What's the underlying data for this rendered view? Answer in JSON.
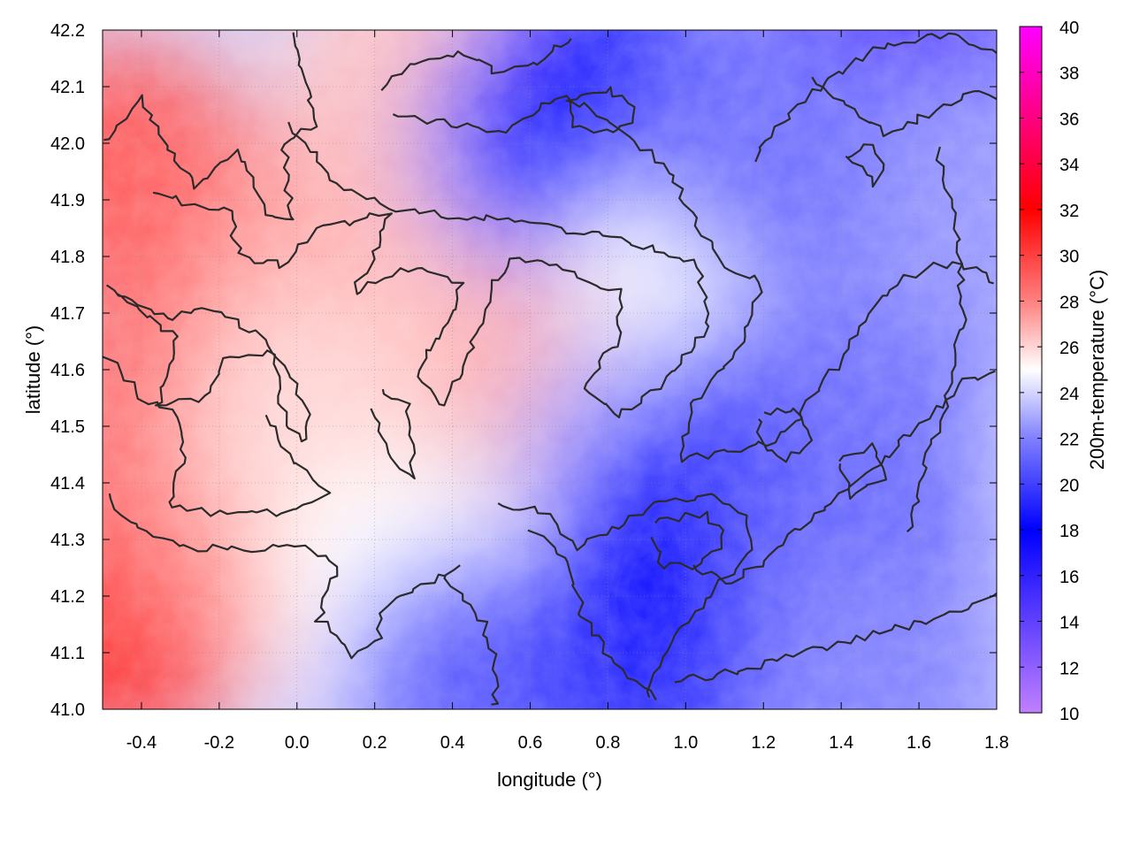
{
  "chart_data": {
    "type": "heatmap",
    "title": "",
    "xlabel": "longitude (°)",
    "ylabel": "latitude (°)",
    "colorbar_label": "200m-temperature (°C)",
    "xlim": [
      -0.5,
      1.8
    ],
    "ylim": [
      41.0,
      42.2
    ],
    "clim": [
      10,
      40
    ],
    "x_ticks": [
      -0.4,
      -0.2,
      0.0,
      0.2,
      0.4,
      0.6,
      0.8,
      1.0,
      1.2,
      1.4,
      1.6,
      1.8
    ],
    "x_tick_labels": [
      "-0.4",
      "-0.2",
      "0.0",
      "0.2",
      "0.4",
      "0.6",
      "0.8",
      "1.0",
      "1.2",
      "1.4",
      "1.6",
      "1.8"
    ],
    "y_ticks": [
      41.0,
      41.1,
      41.2,
      41.3,
      41.4,
      41.5,
      41.6,
      41.7,
      41.8,
      41.9,
      42.0,
      42.1,
      42.2
    ],
    "y_tick_labels": [
      "41.0",
      "41.1",
      "41.2",
      "41.3",
      "41.4",
      "41.5",
      "41.6",
      "41.7",
      "41.8",
      "41.9",
      "42.0",
      "42.1",
      "42.2"
    ],
    "colorbar_ticks": [
      10,
      12,
      14,
      16,
      18,
      20,
      22,
      24,
      26,
      28,
      30,
      32,
      34,
      36,
      38,
      40
    ],
    "colorbar_tick_labels": [
      "10",
      "12",
      "14",
      "16",
      "18",
      "20",
      "22",
      "24",
      "26",
      "28",
      "30",
      "32",
      "34",
      "36",
      "38",
      "40"
    ],
    "colormap": [
      {
        "value": 10,
        "color": "#c080ff"
      },
      {
        "value": 14,
        "color": "#6040ff"
      },
      {
        "value": 18,
        "color": "#0000ff"
      },
      {
        "value": 22,
        "color": "#8080ff"
      },
      {
        "value": 25,
        "color": "#ffffff"
      },
      {
        "value": 28,
        "color": "#ff8080"
      },
      {
        "value": 32,
        "color": "#ff0000"
      },
      {
        "value": 36,
        "color": "#ff0080"
      },
      {
        "value": 40,
        "color": "#ff00ff"
      }
    ],
    "grid": true,
    "contours": true,
    "temperature_regions": [
      {
        "lon": -0.45,
        "lat": 41.95,
        "temp": 29.5
      },
      {
        "lon": -0.3,
        "lat": 41.85,
        "temp": 29.0
      },
      {
        "lon": -0.45,
        "lat": 41.15,
        "temp": 30.5
      },
      {
        "lon": -0.4,
        "lat": 41.5,
        "temp": 28.5
      },
      {
        "lon": -0.1,
        "lat": 41.3,
        "temp": 28.0
      },
      {
        "lon": 0.1,
        "lat": 41.75,
        "temp": 27.0
      },
      {
        "lon": 0.05,
        "lat": 41.5,
        "temp": 26.0
      },
      {
        "lon": 0.3,
        "lat": 42.1,
        "temp": 26.5
      },
      {
        "lon": 0.55,
        "lat": 41.75,
        "temp": 26.5
      },
      {
        "lon": 0.7,
        "lat": 41.6,
        "temp": 27.0
      },
      {
        "lon": 0.25,
        "lat": 41.2,
        "temp": 25.0
      },
      {
        "lon": 0.45,
        "lat": 41.05,
        "temp": 21.0
      },
      {
        "lon": 0.65,
        "lat": 42.0,
        "temp": 21.5
      },
      {
        "lon": 0.75,
        "lat": 42.08,
        "temp": 19.0
      },
      {
        "lon": 0.95,
        "lat": 42.05,
        "temp": 18.5
      },
      {
        "lon": 1.05,
        "lat": 41.75,
        "temp": 25.0
      },
      {
        "lon": 0.9,
        "lat": 41.45,
        "temp": 23.0
      },
      {
        "lon": 0.9,
        "lat": 41.05,
        "temp": 19.5
      },
      {
        "lon": 1.0,
        "lat": 41.3,
        "temp": 18.0
      },
      {
        "lon": 1.3,
        "lat": 41.5,
        "temp": 19.5
      },
      {
        "lon": 1.45,
        "lat": 41.3,
        "temp": 21.0
      },
      {
        "lon": 1.5,
        "lat": 41.65,
        "temp": 21.5
      },
      {
        "lon": 1.6,
        "lat": 42.12,
        "temp": 17.0
      },
      {
        "lon": 1.5,
        "lat": 42.18,
        "temp": 14.5
      },
      {
        "lon": 1.7,
        "lat": 41.9,
        "temp": 22.5
      },
      {
        "lon": 1.5,
        "lat": 41.05,
        "temp": 22.0
      },
      {
        "lon": 1.2,
        "lat": 42.0,
        "temp": 21.5
      }
    ]
  }
}
